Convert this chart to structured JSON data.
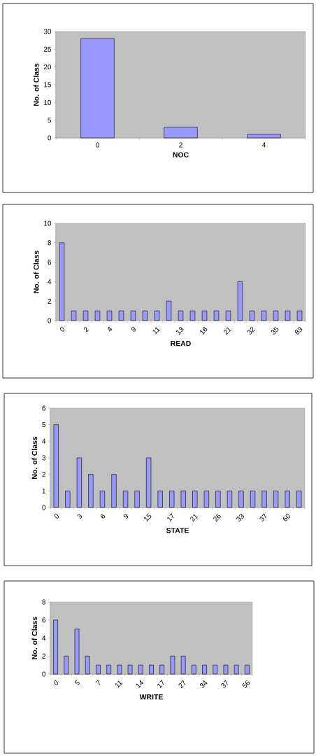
{
  "chart_data": [
    {
      "type": "bar",
      "categories": [
        "0",
        "2",
        "4"
      ],
      "values": [
        28,
        3,
        1
      ],
      "color": "#9999ff",
      "xlabel": "NOC",
      "ylabel": "No. of Class",
      "ylim": [
        0,
        30
      ],
      "yticks": [
        0,
        5,
        10,
        15,
        20,
        25,
        30
      ]
    },
    {
      "type": "bar",
      "categories": [
        "0",
        null,
        "2",
        null,
        "4",
        null,
        "9",
        null,
        "11",
        null,
        "13",
        null,
        "16",
        null,
        "21",
        null,
        "32",
        null,
        "35",
        null,
        "83"
      ],
      "values": [
        8,
        1,
        1,
        1,
        1,
        1,
        1,
        1,
        1,
        2,
        1,
        1,
        1,
        1,
        1,
        4,
        1,
        1,
        1,
        1,
        1
      ],
      "color": "#9999ff",
      "xlabel": "READ",
      "ylabel": "No. of Class",
      "ylim": [
        0,
        10
      ],
      "yticks": [
        0,
        2,
        4,
        6,
        8,
        10
      ]
    },
    {
      "type": "bar",
      "categories": [
        "0",
        null,
        "3",
        null,
        "6",
        null,
        "9",
        null,
        "15",
        null,
        "17",
        null,
        "21",
        null,
        "26",
        null,
        "33",
        null,
        "37",
        null,
        "60",
        null
      ],
      "values": [
        5,
        1,
        3,
        2,
        1,
        2,
        1,
        1,
        3,
        1,
        1,
        1,
        1,
        1,
        1,
        1,
        1,
        1,
        1,
        1,
        1,
        1
      ],
      "color": "#9999ff",
      "xlabel": "STATE",
      "ylabel": "No. of Class",
      "ylim": [
        0,
        6
      ],
      "yticks": [
        0,
        1,
        2,
        3,
        4,
        5,
        6
      ]
    },
    {
      "type": "bar",
      "categories": [
        "0",
        null,
        "5",
        null,
        "7",
        null,
        "11",
        null,
        "14",
        null,
        "17",
        null,
        "27",
        null,
        "34",
        null,
        "37",
        null,
        "56"
      ],
      "values": [
        6,
        2,
        5,
        2,
        1,
        1,
        1,
        1,
        1,
        1,
        1,
        2,
        2,
        1,
        1,
        1,
        1,
        1,
        1
      ],
      "color": "#9999ff",
      "xlabel": "WRITE",
      "ylabel": "No. of Class",
      "ylim": [
        0,
        8
      ],
      "yticks": [
        0,
        2,
        4,
        6,
        8
      ]
    }
  ]
}
